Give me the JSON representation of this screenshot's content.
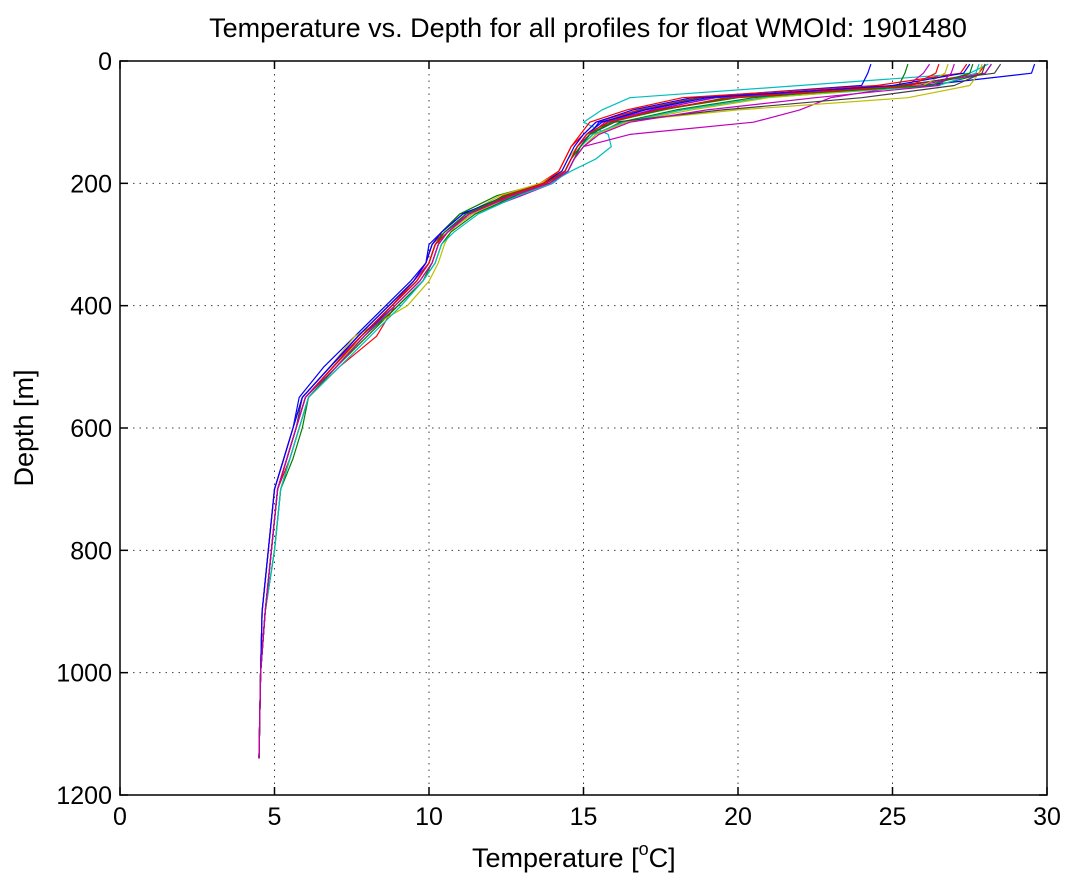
{
  "chart_data": {
    "type": "line",
    "title": "Temperature vs. Depth for all profiles for float WMOId: 1901480",
    "xlabel_main": "Temperature [",
    "xlabel_sup": "o",
    "xlabel_end": "C]",
    "ylabel": "Depth [m]",
    "xlim": [
      0,
      30
    ],
    "ylim": [
      0,
      1200
    ],
    "y_reversed": true,
    "xticks": [
      0,
      5,
      10,
      15,
      20,
      25,
      30
    ],
    "yticks": [
      0,
      200,
      400,
      600,
      800,
      1000,
      1200
    ],
    "grid": true,
    "legend": "none",
    "shared_depth": [
      5,
      20,
      40,
      60,
      80,
      100,
      120,
      140,
      160,
      180,
      200,
      220,
      250,
      280,
      300,
      330,
      360,
      400,
      450,
      500,
      550,
      600,
      650,
      700,
      800,
      900,
      1000,
      1140
    ],
    "base_temperature": [
      27.2,
      27.0,
      25.0,
      19.0,
      17.0,
      15.5,
      15.0,
      14.8,
      14.6,
      14.4,
      13.8,
      12.5,
      11.2,
      10.5,
      10.2,
      10.0,
      9.6,
      8.8,
      7.8,
      6.9,
      6.0,
      5.7,
      5.4,
      5.1,
      4.9,
      4.7,
      4.55,
      4.5
    ],
    "series": [
      {
        "color": "#0000ff",
        "values": [
          29.6,
          29.5,
          26.0,
          19.2,
          17.3,
          15.5,
          15.2,
          14.9,
          14.7,
          14.5,
          14.0,
          12.9,
          11.0,
          10.4,
          10.0,
          9.9,
          9.4,
          8.6,
          7.6,
          6.6,
          5.8,
          5.6,
          5.3,
          5.0,
          4.8,
          4.6,
          4.55,
          4.5
        ]
      },
      {
        "color": "#008000",
        "values": [
          28.2,
          28.0,
          26.4,
          19.6,
          17.6,
          15.8,
          15.3,
          14.9,
          14.6,
          14.4,
          13.7,
          12.2,
          11.0,
          10.4,
          10.3,
          10.1,
          9.8,
          9.0,
          8.0,
          7.0,
          6.1,
          5.9,
          5.6,
          5.2,
          5.0,
          4.7,
          4.55,
          4.5
        ]
      },
      {
        "color": "#ff0000",
        "values": [
          28.0,
          27.8,
          25.5,
          18.7,
          16.8,
          15.4,
          15.0,
          14.6,
          14.4,
          14.2,
          13.6,
          12.4,
          11.4,
          10.6,
          10.3,
          10.1,
          9.7,
          8.9,
          8.3,
          7.1,
          6.1,
          5.8,
          5.5,
          5.1,
          4.9,
          4.7,
          4.55,
          4.5
        ]
      },
      {
        "color": "#00bfbf",
        "values": [
          28.1,
          27.5,
          22.0,
          16.5,
          15.6,
          15.0,
          15.8,
          15.9,
          15.4,
          14.6,
          13.9,
          12.6,
          11.3,
          10.5,
          10.2,
          10.0,
          9.6,
          8.8,
          7.9,
          6.9,
          6.0,
          5.7,
          5.4,
          5.1,
          4.9,
          4.7,
          4.55,
          4.5
        ]
      },
      {
        "color": "#bf00bf",
        "values": [
          26.2,
          26.0,
          25.5,
          23.0,
          22.0,
          20.5,
          16.5,
          15.0,
          14.7,
          14.5,
          14.0,
          13.0,
          11.4,
          10.6,
          10.2,
          10.0,
          9.5,
          8.7,
          7.7,
          6.8,
          5.9,
          5.6,
          5.3,
          5.0,
          4.8,
          4.6,
          4.55,
          4.5
        ]
      },
      {
        "color": "#bfbf00",
        "values": [
          27.9,
          27.8,
          27.5,
          25.5,
          20.0,
          16.0,
          15.2,
          14.8,
          14.5,
          14.3,
          13.6,
          12.3,
          11.2,
          10.7,
          10.5,
          10.3,
          10.0,
          9.3,
          7.6,
          6.8,
          5.9,
          5.6,
          5.3,
          5.0,
          4.8,
          4.6,
          4.55,
          4.5
        ]
      },
      {
        "color": "#404040",
        "values": [
          28.5,
          28.3,
          25.2,
          18.8,
          16.9,
          15.6,
          15.1,
          14.8,
          14.6,
          14.4,
          13.9,
          12.7,
          11.1,
          10.4,
          10.1,
          9.9,
          9.5,
          8.7,
          7.7,
          6.8,
          5.9,
          5.7,
          5.4,
          5.1,
          4.9,
          4.7,
          4.55,
          4.5
        ]
      },
      {
        "color": "#0000ff",
        "values": [
          24.3,
          24.2,
          24.0,
          18.5,
          16.6,
          15.4,
          15.0,
          14.7,
          14.5,
          14.3,
          13.7,
          12.6,
          11.3,
          10.6,
          10.3,
          10.1,
          9.7,
          8.9,
          7.8,
          6.9,
          6.0,
          5.7,
          5.4,
          5.1,
          4.9,
          4.7,
          4.55,
          4.5
        ]
      },
      {
        "color": "#008000",
        "values": [
          25.5,
          25.4,
          25.2,
          20.5,
          18.0,
          16.2,
          15.4,
          15.0,
          14.7,
          14.5,
          13.9,
          12.8,
          11.5,
          10.7,
          10.4,
          10.2,
          9.8,
          9.0,
          7.9,
          7.0,
          6.1,
          5.8,
          5.5,
          5.2,
          5.0,
          4.7,
          4.55,
          4.5
        ]
      },
      {
        "color": "#ff0000",
        "values": [
          27.4,
          27.2,
          24.5,
          18.2,
          16.4,
          15.2,
          14.9,
          14.6,
          14.4,
          14.2,
          13.7,
          12.5,
          11.2,
          10.5,
          10.1,
          9.9,
          9.5,
          8.8,
          7.8,
          6.9,
          6.0,
          5.7,
          5.4,
          5.1,
          4.9,
          4.7,
          4.55,
          4.5
        ]
      },
      {
        "color": "#00bfbf",
        "values": [
          27.8,
          27.7,
          26.5,
          20.8,
          18.2,
          16.3,
          15.3,
          14.9,
          14.7,
          14.5,
          14.0,
          12.9,
          11.6,
          10.8,
          10.4,
          10.2,
          9.8,
          9.1,
          8.1,
          7.1,
          6.1,
          5.8,
          5.5,
          5.2,
          5.0,
          4.7,
          4.55,
          4.5
        ]
      },
      {
        "color": "#bf00bf",
        "values": [
          28.2,
          28.0,
          25.8,
          19.3,
          17.2,
          15.7,
          15.2,
          14.8,
          14.6,
          14.4,
          13.8,
          12.6,
          11.3,
          10.5,
          10.2,
          10.0,
          9.6,
          8.8,
          7.8,
          6.8,
          5.9,
          5.6,
          5.3,
          5.0,
          4.8,
          4.6,
          4.55,
          4.5
        ]
      },
      {
        "color": "#bfbf00",
        "values": [
          26.8,
          26.7,
          26.0,
          21.0,
          18.5,
          16.4,
          15.4,
          15.0,
          14.7,
          14.5,
          13.9,
          12.7,
          11.4,
          10.6,
          10.3,
          10.1,
          9.7,
          8.9,
          7.9,
          6.9,
          6.0,
          5.7,
          5.4,
          5.1,
          4.9,
          4.7,
          4.55,
          4.5
        ]
      },
      {
        "color": "#404040",
        "values": [
          28.0,
          27.9,
          27.0,
          24.0,
          19.5,
          16.0,
          15.2,
          14.9,
          14.7,
          14.5,
          13.9,
          12.6,
          11.2,
          10.5,
          10.2,
          10.0,
          9.6,
          8.8,
          7.8,
          6.9,
          6.0,
          5.7,
          5.4,
          5.1,
          4.9,
          4.7,
          4.55,
          4.5
        ]
      },
      {
        "color": "#0000ff",
        "values": [
          27.5,
          27.3,
          25.0,
          19.0,
          17.0,
          15.6,
          15.1,
          14.8,
          14.6,
          14.4,
          13.8,
          12.5,
          11.1,
          10.4,
          10.1,
          9.9,
          9.5,
          8.7,
          7.7,
          6.8,
          5.9,
          5.6,
          5.3,
          5.0,
          4.8,
          4.6,
          4.55,
          4.5
        ]
      },
      {
        "color": "#008000",
        "values": [
          27.6,
          27.5,
          26.2,
          20.0,
          17.5,
          15.9,
          15.2,
          14.9,
          14.6,
          14.4,
          13.8,
          12.5,
          11.2,
          10.5,
          10.2,
          10.0,
          9.6,
          8.8,
          7.8,
          6.9,
          6.0,
          5.7,
          5.4,
          5.1,
          4.9,
          4.7,
          4.55,
          4.5
        ]
      },
      {
        "color": "#ff0000",
        "values": [
          26.5,
          26.4,
          25.6,
          19.8,
          17.4,
          15.8,
          15.1,
          14.8,
          14.6,
          14.4,
          13.8,
          12.6,
          11.3,
          10.6,
          10.2,
          10.0,
          9.6,
          8.8,
          7.8,
          6.9,
          6.0,
          5.7,
          5.4,
          5.1,
          4.9,
          4.7,
          4.55,
          4.5
        ]
      },
      {
        "color": "#bf00bf",
        "values": [
          27.0,
          26.9,
          26.5,
          22.5,
          19.0,
          16.5,
          15.5,
          15.0,
          14.7,
          14.5,
          13.9,
          12.7,
          11.3,
          10.6,
          10.3,
          10.1,
          9.7,
          8.9,
          7.9,
          7.0,
          6.0,
          5.7,
          5.4,
          5.1,
          4.9,
          4.7,
          4.55,
          4.5
        ]
      }
    ]
  }
}
